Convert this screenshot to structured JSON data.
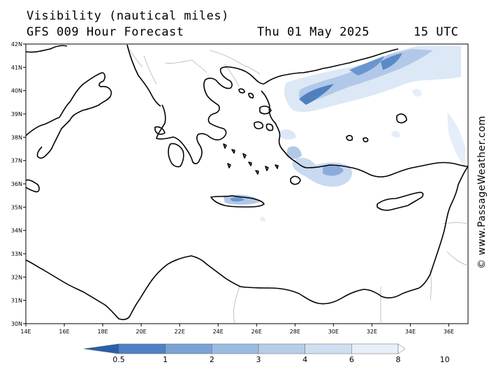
{
  "header": {
    "title": "Visibility (nautical miles)",
    "subtitle": "GFS 009 Hour Forecast",
    "date": "Thu 01 May 2025",
    "time": "15 UTC"
  },
  "credit": "© www.PassageWeather.com",
  "map": {
    "lon_range": [
      14,
      37
    ],
    "lat_range": [
      30,
      42
    ],
    "lat_ticks": [
      "42N",
      "41N",
      "40N",
      "39N",
      "38N",
      "37N",
      "36N",
      "35N",
      "34N",
      "33N",
      "32N",
      "31N",
      "30N"
    ],
    "lon_ticks": [
      "14E",
      "16E",
      "18E",
      "20E",
      "22E",
      "24E",
      "26E",
      "28E",
      "30E",
      "32E",
      "34E",
      "36E"
    ],
    "colors": {
      "coast": "#000000",
      "border": "#b4b4b4",
      "vis_low": "#3d73b8",
      "vis_mid": "#8fb1dc",
      "vis_high": "#d2e2f4"
    }
  },
  "colorbar": {
    "labels": [
      "0.5",
      "1",
      "2",
      "3",
      "4",
      "6",
      "8",
      "10"
    ],
    "colors": [
      "#2b5fa9",
      "#4f82c4",
      "#7aa2d5",
      "#9cbbe0",
      "#b6cde8",
      "#cfdff1",
      "#e7eff8",
      "#f8fbfe"
    ]
  }
}
